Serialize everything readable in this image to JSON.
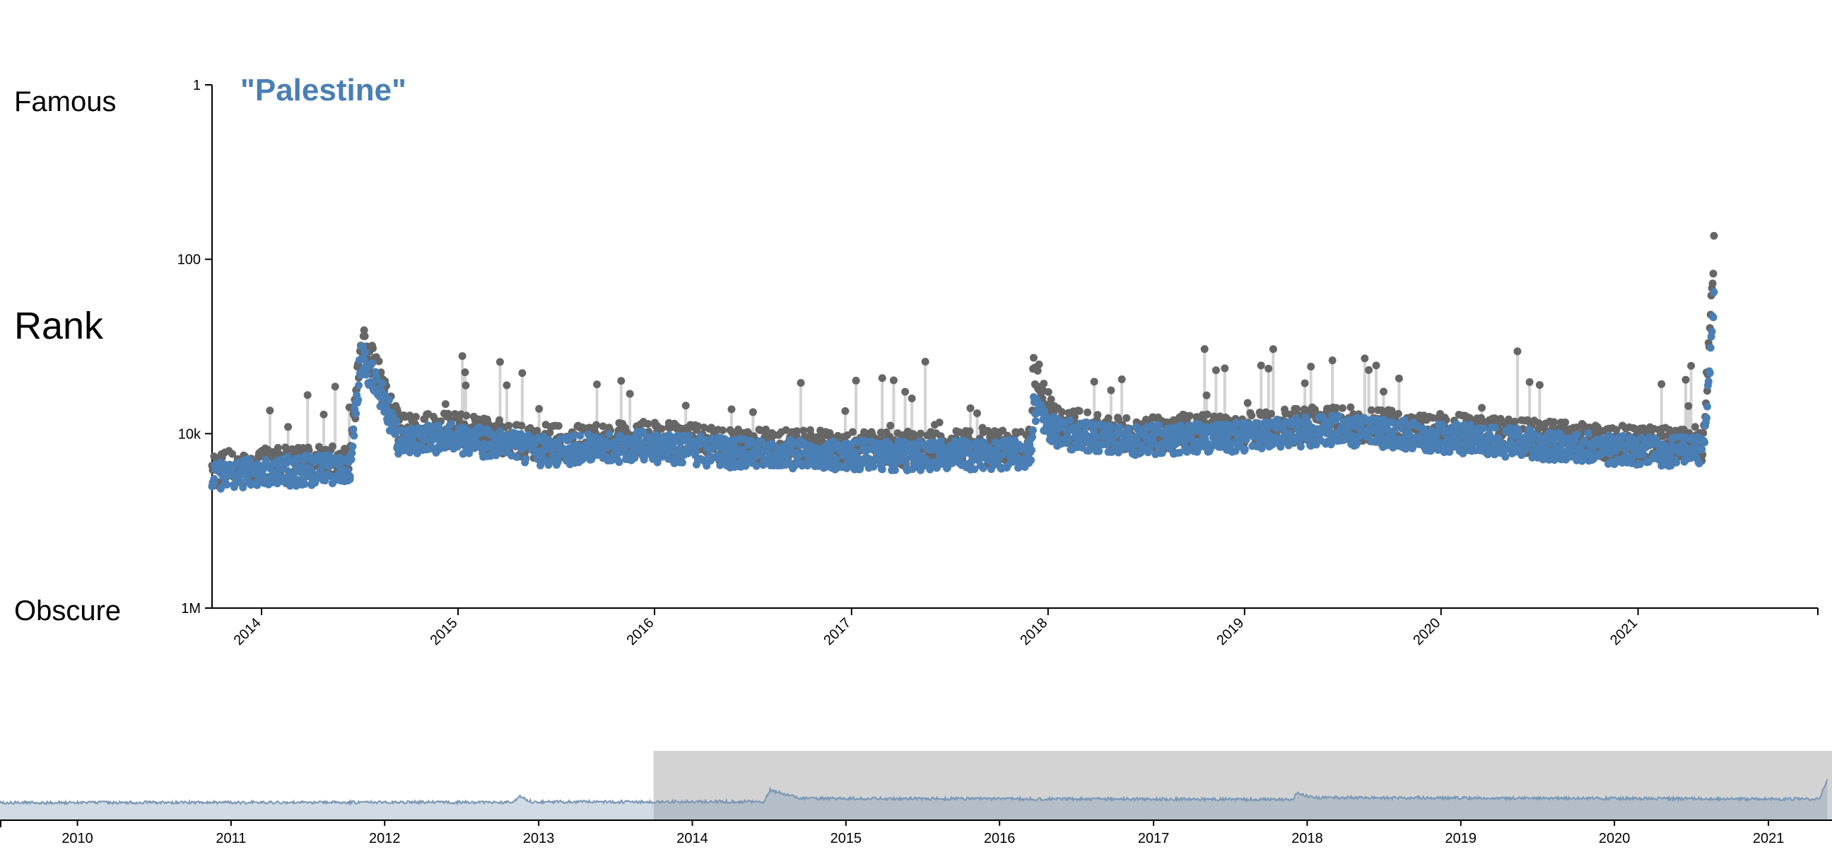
{
  "labels": {
    "famous": "Famous",
    "rank": "Rank",
    "obscure": "Obscure"
  },
  "chart_data": {
    "type": "scatter",
    "title": "\"Palestine\"",
    "ylabel": "Rank",
    "y_scale": "log",
    "y_reversed": true,
    "ylim": [
      1,
      1000000
    ],
    "y_ticks": [
      {
        "value": 1,
        "label": "1"
      },
      {
        "value": 100,
        "label": "100"
      },
      {
        "value": 10000,
        "label": "10k"
      },
      {
        "value": 1000000,
        "label": "1M"
      }
    ],
    "xlim": [
      "2013-10-01",
      "2021-12-01"
    ],
    "x_ticks": [
      "2014",
      "2015",
      "2016",
      "2017",
      "2018",
      "2019",
      "2020",
      "2021"
    ],
    "grid": false,
    "colors": {
      "primary": "#4a7fb5",
      "secondary": "#666666",
      "connector": "#d3d3d3",
      "title": "#4a7fb5",
      "overview_line": "#7a97b5",
      "brush": "#d3d3d3"
    },
    "series": [
      {
        "role": "primary",
        "rank_profile": [
          {
            "date": "2013-10-01",
            "rank": 30000
          },
          {
            "date": "2014-03-01",
            "rank": 27000
          },
          {
            "date": "2014-06-15",
            "rank": 25000
          },
          {
            "date": "2014-07-05",
            "rank": 1300
          },
          {
            "date": "2014-08-15",
            "rank": 4000
          },
          {
            "date": "2014-09-15",
            "rank": 13000
          },
          {
            "date": "2014-12-15",
            "rank": 11000
          },
          {
            "date": "2015-06-01",
            "rank": 16000
          },
          {
            "date": "2015-12-01",
            "rank": 14000
          },
          {
            "date": "2016-06-01",
            "rank": 17000
          },
          {
            "date": "2017-06-01",
            "rank": 18000
          },
          {
            "date": "2017-12-01",
            "rank": 17000
          },
          {
            "date": "2017-12-05",
            "rank": 4500
          },
          {
            "date": "2018-01-15",
            "rank": 10000
          },
          {
            "date": "2018-06-01",
            "rank": 12000
          },
          {
            "date": "2019-01-01",
            "rank": 11000
          },
          {
            "date": "2019-06-01",
            "rank": 9000
          },
          {
            "date": "2020-01-01",
            "rank": 11000
          },
          {
            "date": "2020-06-01",
            "rank": 13000
          },
          {
            "date": "2021-01-01",
            "rank": 16000
          },
          {
            "date": "2021-05-01",
            "rank": 16000
          },
          {
            "date": "2021-05-15",
            "rank": 1500
          },
          {
            "date": "2021-05-22",
            "rank": 250
          }
        ]
      },
      {
        "role": "secondary",
        "rank_profile": [
          {
            "date": "2013-10-01",
            "rank": 25000
          },
          {
            "date": "2014-03-01",
            "rank": 22000
          },
          {
            "date": "2014-06-15",
            "rank": 20000
          },
          {
            "date": "2014-07-05",
            "rank": 800
          },
          {
            "date": "2014-08-15",
            "rank": 3000
          },
          {
            "date": "2014-09-15",
            "rank": 10000
          },
          {
            "date": "2014-12-15",
            "rank": 9000
          },
          {
            "date": "2015-06-01",
            "rank": 13000
          },
          {
            "date": "2015-12-01",
            "rank": 11000
          },
          {
            "date": "2016-06-01",
            "rank": 14000
          },
          {
            "date": "2017-06-01",
            "rank": 15000
          },
          {
            "date": "2017-12-01",
            "rank": 14000
          },
          {
            "date": "2017-12-05",
            "rank": 1600
          },
          {
            "date": "2018-01-15",
            "rank": 8000
          },
          {
            "date": "2018-06-01",
            "rank": 10000
          },
          {
            "date": "2019-01-01",
            "rank": 9000
          },
          {
            "date": "2019-06-01",
            "rank": 7500
          },
          {
            "date": "2020-01-01",
            "rank": 9000
          },
          {
            "date": "2020-06-01",
            "rank": 11000
          },
          {
            "date": "2021-01-01",
            "rank": 13000
          },
          {
            "date": "2021-05-01",
            "rank": 13000
          },
          {
            "date": "2021-05-15",
            "rank": 700
          },
          {
            "date": "2021-05-22",
            "rank": 80
          }
        ]
      }
    ],
    "overview": {
      "type": "area",
      "xlim": [
        "2009-07-01",
        "2021-06-01"
      ],
      "x_ticks": [
        "2010",
        "2011",
        "2012",
        "2013",
        "2014",
        "2015",
        "2016",
        "2017",
        "2018",
        "2019",
        "2020",
        "2021"
      ],
      "selection": [
        "2013-10-01",
        "2021-06-01"
      ],
      "rank_profile": [
        {
          "date": "2009-07-01",
          "rank": 30000
        },
        {
          "date": "2012-11-01",
          "rank": 28000
        },
        {
          "date": "2012-11-15",
          "rank": 8000
        },
        {
          "date": "2012-12-15",
          "rank": 26000
        },
        {
          "date": "2014-06-20",
          "rank": 25000
        },
        {
          "date": "2014-07-05",
          "rank": 2500
        },
        {
          "date": "2014-09-15",
          "rank": 13000
        },
        {
          "date": "2017-12-01",
          "rank": 16000
        },
        {
          "date": "2017-12-05",
          "rank": 4000
        },
        {
          "date": "2018-01-15",
          "rank": 11000
        },
        {
          "date": "2021-05-01",
          "rank": 15000
        },
        {
          "date": "2021-05-22",
          "rank": 250
        }
      ]
    }
  }
}
